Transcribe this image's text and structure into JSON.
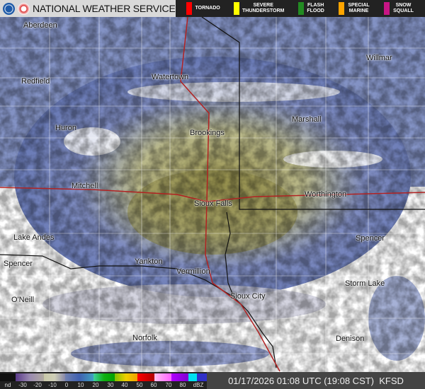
{
  "header": {
    "title": "NATIONAL WEATHER SERVICE",
    "legend": [
      {
        "label": "TORNADO",
        "color": "#ff0000"
      },
      {
        "label": "SEVERE THUNDERSTORM",
        "color": "#ffff00"
      },
      {
        "label": "FLASH FLOOD",
        "color": "#228b22"
      },
      {
        "label": "SPECIAL MARINE",
        "color": "#ffa500"
      },
      {
        "label": "SNOW SQUALL",
        "color": "#c71585"
      }
    ]
  },
  "cities": [
    {
      "name": "Aberdeen"
    },
    {
      "name": "Redfield"
    },
    {
      "name": "Watertown"
    },
    {
      "name": "Willmar"
    },
    {
      "name": "Huron"
    },
    {
      "name": "Brookings"
    },
    {
      "name": "Marshall"
    },
    {
      "name": "Mitchell"
    },
    {
      "name": "Sioux Falls"
    },
    {
      "name": "Worthington"
    },
    {
      "name": "Lake Andes"
    },
    {
      "name": "Spencer"
    },
    {
      "name": "Spencer"
    },
    {
      "name": "Yankton"
    },
    {
      "name": "Vermillion"
    },
    {
      "name": "Storm Lake"
    },
    {
      "name": "O'Neill"
    },
    {
      "name": "Sioux City"
    },
    {
      "name": "Norfolk"
    },
    {
      "name": "Denison"
    }
  ],
  "scale": {
    "ticks": [
      "nd",
      "-30",
      "-20",
      "-10",
      "0",
      "10",
      "20",
      "30",
      "40",
      "50",
      "60",
      "70",
      "80",
      "dBZ"
    ]
  },
  "footer": {
    "timestamp": "01/17/2026 01:08 UTC (19:08 CST)",
    "site": "KFSD"
  }
}
